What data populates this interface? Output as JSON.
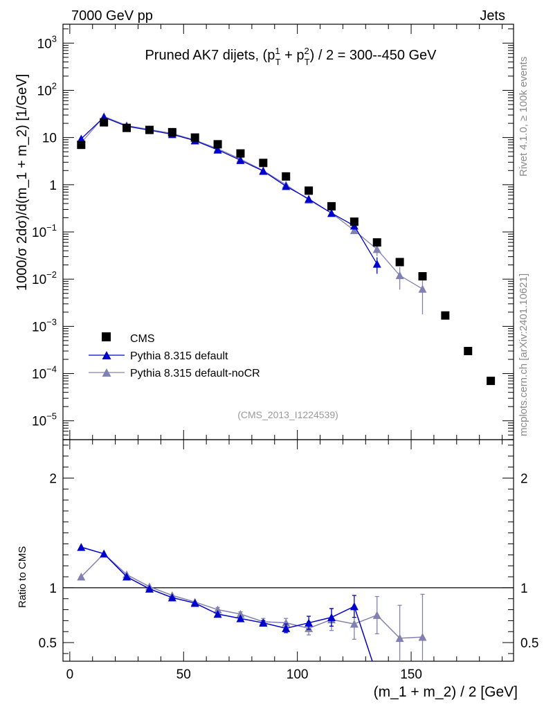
{
  "header": {
    "left": "7000 GeV pp",
    "right": "Jets"
  },
  "side_labels": {
    "top": "Rivet 4.1.0, ≥ 100k events",
    "bottom": "mcplots.cern.ch [arXiv:2401.10621]"
  },
  "colors": {
    "cms": "#000000",
    "default": "#0000cc",
    "nocr": "#8080b3",
    "side": "#8a8a8a"
  },
  "chart_data": {
    "type": "scatter",
    "title_main": "Pruned AK7 dijets, (p",
    "title_sup1": "1",
    "title_sub1": "T",
    "title_mid": " + p",
    "title_sup2": "2",
    "title_sub2": "T",
    "title_end": ") / 2 = 300--450 GeV",
    "xlabel": "(m_1 + m_2) / 2 [GeV]",
    "ylabel": "1000/σ   2dσ)/d(m_1 + m_2) [1/GeV]",
    "ratio_ylabel": "Ratio to CMS",
    "analysis_tag": "(CMS_2013_I1224539)",
    "xlim": [
      -3,
      195
    ],
    "ylim_log": [
      -5.4,
      3.4
    ],
    "ratio_ylim": [
      0.33,
      2.35
    ],
    "x_ticks": [
      "0",
      "50",
      "100",
      "150"
    ],
    "x_tick_values": [
      0,
      50,
      100,
      150
    ],
    "y_ticks": [
      {
        "value": 1000,
        "base": "10",
        "exp": "3"
      },
      {
        "value": 100,
        "base": "10",
        "exp": "2"
      },
      {
        "value": 10,
        "base": "10",
        "exp": ""
      },
      {
        "value": 1,
        "base": "1",
        "exp": ""
      },
      {
        "value": 0.1,
        "base": "10",
        "exp": "−1"
      },
      {
        "value": 0.01,
        "base": "10",
        "exp": "−2"
      },
      {
        "value": 0.001,
        "base": "10",
        "exp": "−3"
      },
      {
        "value": 0.0001,
        "base": "10",
        "exp": "−4"
      },
      {
        "value": 1e-05,
        "base": "10",
        "exp": "−5"
      }
    ],
    "ratio_ticks": [
      {
        "value": 2,
        "label": "2"
      },
      {
        "value": 1,
        "label": "1"
      },
      {
        "value": 0.5,
        "label": "0.5"
      }
    ],
    "series": [
      {
        "name": "CMS",
        "x": [
          5,
          15,
          25,
          35,
          45,
          55,
          65,
          75,
          85,
          95,
          105,
          115,
          125,
          135,
          145,
          155,
          165,
          175,
          185
        ],
        "y": [
          7,
          21,
          16,
          14.5,
          13,
          10,
          7.2,
          4.6,
          2.9,
          1.5,
          0.75,
          0.35,
          0.165,
          0.06,
          0.023,
          0.0115,
          0.0017,
          0.0003,
          7e-05
        ]
      },
      {
        "name": "Pythia 8.315 default",
        "x": [
          5,
          15,
          25,
          35,
          45,
          55,
          65,
          75,
          85,
          95,
          105,
          115,
          125,
          135
        ],
        "y": [
          9.4,
          27,
          17.3,
          14.3,
          11.7,
          8.6,
          5.5,
          3.3,
          1.95,
          0.93,
          0.5,
          0.25,
          0.135,
          0.021
        ],
        "yerr": [
          0,
          0,
          0,
          0,
          0,
          0,
          0,
          0,
          0,
          0,
          0,
          0,
          0,
          0.008
        ],
        "ratio": [
          1.37,
          1.31,
          1.1,
          0.99,
          0.91,
          0.86,
          0.76,
          0.72,
          0.68,
          0.63,
          0.68,
          0.73,
          0.83,
          0.2
        ],
        "ratio_err": [
          0,
          0,
          0,
          0,
          0,
          0,
          0,
          0,
          0.02,
          0.04,
          0.06,
          0.08,
          0.1,
          0.1
        ]
      },
      {
        "name": "Pythia 8.315 default-noCR",
        "x": [
          5,
          15,
          25,
          35,
          45,
          55,
          65,
          75,
          85,
          95,
          105,
          115,
          125,
          135,
          145,
          155
        ],
        "y": [
          7.7,
          28,
          18,
          14.8,
          12.2,
          8.8,
          5.8,
          3.5,
          2.0,
          1.0,
          0.48,
          0.25,
          0.108,
          0.043,
          0.012,
          0.0062
        ],
        "yerr": [
          0,
          0,
          0,
          0,
          0,
          0,
          0,
          0,
          0,
          0,
          0,
          0,
          0,
          0.012,
          0.006,
          0.0044
        ],
        "ratio": [
          1.1,
          1.31,
          1.12,
          1.01,
          0.93,
          0.87,
          0.8,
          0.76,
          0.69,
          0.68,
          0.63,
          0.71,
          0.67,
          0.75,
          0.54,
          0.55
        ],
        "ratio_err": [
          0,
          0,
          0,
          0,
          0,
          0,
          0.02,
          0.02,
          0.03,
          0.04,
          0.06,
          0.1,
          0.14,
          0.17,
          0.3,
          0.39
        ]
      }
    ]
  }
}
